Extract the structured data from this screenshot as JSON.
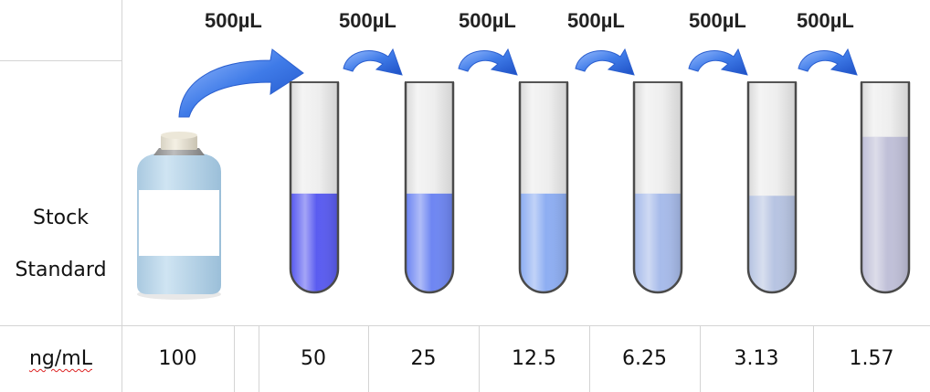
{
  "row_label": {
    "line1": "Stock",
    "line2": "Standard"
  },
  "transfer_volume_labels": [
    "500µL",
    "500µL",
    "500µL",
    "500µL",
    "500µL",
    "500µL"
  ],
  "concentration_row": {
    "unit": "ng/mL",
    "stock": "100",
    "tubes": [
      "50",
      "25",
      "12.5",
      "6.25",
      "3.13",
      "1.57"
    ]
  },
  "liquid_colors": [
    "#5a5cf0",
    "#6e86f2",
    "#8eaef2",
    "#a7bbea",
    "#b7c4e2",
    "#c0c0d8"
  ],
  "tube_fill_levels": [
    0.47,
    0.47,
    0.47,
    0.47,
    0.46,
    0.74
  ]
}
